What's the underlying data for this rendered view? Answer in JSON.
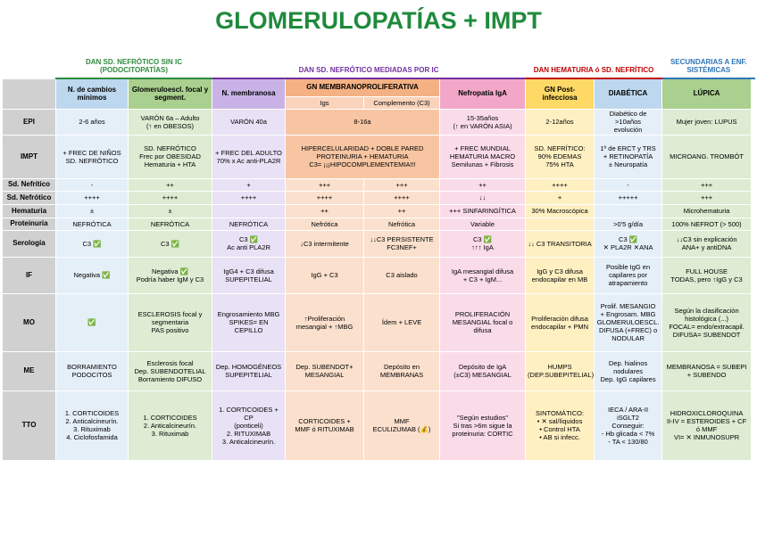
{
  "title": "GLOMERULOPATÍAS + IMPT",
  "groups": [
    {
      "label": "DAN SD. NEFRÓTICO SIN IC (PODOCITOPATÍAS)",
      "color": "#2e8b3e"
    },
    {
      "label": "DAN SD. NEFRÓTICO MEDIADAS POR IC",
      "color": "#7030a0"
    },
    {
      "label": "DAN HEMATURIA ó SD. NEFRÍTICO",
      "color": "#c00000"
    },
    {
      "label": "SECUNDARIAS A ENF. SISTÉMICAS",
      "color": "#2e74b5"
    }
  ],
  "columns": [
    {
      "label": "N. de cambios mínimos",
      "color": "#bdd7ee"
    },
    {
      "label": "Glomeruloescl. focal y segment.",
      "color": "#a9d08e"
    },
    {
      "label": "N. membranosa",
      "color": "#c9b3e6"
    },
    {
      "label": "GN MEMBRANOPROLIFERATIVA",
      "color": "#f4b183",
      "sub": [
        "Igs",
        "Complemento (C3)"
      ]
    },
    {
      "label": "Nefropatía IgA",
      "color": "#f2a7c8"
    },
    {
      "label": "GN Post-infecciosa",
      "color": "#ffd966"
    },
    {
      "label": "DIABÉTICA",
      "color": "#bdd7ee"
    },
    {
      "label": "LÚPICA",
      "color": "#a9d08e"
    }
  ],
  "rows": [
    {
      "label": "EPI",
      "cells": [
        "2-6 años",
        "VARÓN 6a – Adulto\n(↑ en OBESOS)",
        "VARÓN 40a",
        "8-16a",
        "15-35años\n(↑ en VARÓN ASIA)",
        "2-12años",
        "Diabético de\n>10años\nevolución",
        "Mujer joven: LUPUS"
      ]
    },
    {
      "label": "IMPT",
      "cells": [
        "+ FREC DE NIÑOS\nSD. NEFRÓTICO",
        "SD. NEFRÓTICO\nFrec por OBESIDAD\nHematuria + HTA",
        "+ FREC DEL ADULTO\n70% x Ac anti-PLA2R",
        "HIPERCELULARIDAD + DOBLE PARED\nPROTEINURIA + HEMATURIA\nC3= ¡¡¡HIPOCOMPLEMENTEMIA!!!",
        "+ FREC MUNDIAL\nHEMATURIA MACRO\nSemilunas + Fibrosis",
        "SD. NEFRÍTICO:\n90% EDEMAS\n75% HTA",
        "1º de ERCT y TRS\n+ RETINOPATÍA\n± Neuropatía",
        "MICROANG. TROMBÓT"
      ]
    },
    {
      "label": "Sd. Nefrítico",
      "cells": [
        "-",
        "++",
        "+",
        "+++",
        "+++",
        "++",
        "++++",
        "-",
        "+++"
      ]
    },
    {
      "label": "Sd. Nefrótico",
      "cells": [
        "++++",
        "++++",
        "++++",
        "++++",
        "++++",
        "↓↓",
        "+",
        "+++++",
        "+++"
      ]
    },
    {
      "label": "Hematuria",
      "cells": [
        "±",
        "±",
        null,
        "++",
        "++",
        "+++ SINFARINGÍTICA",
        "30% Macroscópica",
        null,
        "Microhematuria"
      ]
    },
    {
      "label": "Proteinuria",
      "cells": [
        "NEFRÓTICA",
        "NEFRÓTICA",
        "NEFRÓTICA",
        "Nefrótica",
        "Nefrótica",
        "Variable",
        null,
        ">0'5 g/día",
        "100% NEFROT (> 500)"
      ]
    },
    {
      "label": "Serología",
      "cells": [
        "C3 ✅",
        "C3 ✅",
        "C3 ✅\nAc anti PLA2R",
        "↓C3 intermitente",
        "↓↓C3 PERSISTENTE\nFC3NEF+",
        "C3 ✅\n↑↑↑ IgA",
        "↓↓ C3 TRANSITORIA",
        "C3 ✅\n✕ PLA2R ✕ANA",
        "↓↓C3 sin explicación\nANA+ y antiDNA"
      ]
    },
    {
      "label": "IF",
      "cells": [
        "Negativa ✅",
        "Negativa ✅\nPodría haber IgM y C3",
        "IgG4 + C3 difusa\nSUPEPITELIAL",
        "IgG + C3",
        "C3 aislado",
        "IgA mesangial difusa\n+ C3 + IgM...",
        "IgG y C3 difusa\nendocapilar en MB",
        "Posible IgG en\ncapilares por\natrapamiento",
        "FULL HOUSE\nTODAS, pero ↑IgG y C3"
      ]
    },
    {
      "label": "MO",
      "cells": [
        "✅",
        "ESCLEROSIS focal y\nsegmentaria\nPAS positivo",
        "Engrosamiento MBG\nSPIKES= EN CEPILLO",
        "↑Proliferación\nmesangial + ↑MBG",
        "Ídem + LEVE",
        "PROLIFERACIÓN\nMESANGIAL focal o\ndifusa",
        "Proliferación difusa\nendocapilar + PMN",
        "Prolif. MESANGIO\n+ Engrosam. MBG\nGLOMERULOESCL.\nDIFUSA (+FREC) o\nNODULAR",
        "Según la clasificación\nhistológica (...)\nFOCAL= endo/extracapil.\nDIFUSA= SUBENDOT"
      ]
    },
    {
      "label": "ME",
      "cells": [
        "BORRAMIENTO\nPODOCITOS",
        "Esclerosis focal\nDep. SUBENDOTELIAL\nBorramiento DIFUSO",
        "Dep. HOMOGÉNEOS\nSUPEPITELIAL",
        "Dep. SUBENDOT+\nMESANGIAL",
        "Depósito en\nMEMBRANAS",
        "Depósito de IgA\n(±C3) MESANGIAL",
        "HUMPS\n(DEP.SUBEPITELIAL)",
        "Dep. hialinos\nnodulares\nDep. IgG capilares",
        "MEMBRANOSA = SUBEPI\n+ SUBENDO"
      ]
    },
    {
      "label": "TTO",
      "cells": [
        "1. CORTICOIDES\n2. Anticalcineurín.\n3. Rituximab\n4. Ciclofosfamida",
        "1. CORTICOIDES\n2. Anticalcineurín.\n3. Rituximab",
        "1. CORTICOIDES + CP\n(ponticeli)\n2. RITUXIMAB\n3. Anticalcineurín.",
        "CORTICOIDES +\nMMF ó RITUXIMAB",
        "MMF\nECULIZUMAB (💰)",
        "\"Según estudios\"\nSi tras >6m sigue la\nproteinuria: CORTIC",
        "SINTOMÁTICO:\n• ✕ sal/líquidos\n• Control HTA\n• AB si infecc.",
        "IECA / ARA-II\niSGLT2\nConseguir:\n- Hb glicada < 7%\n- TA < 130/80",
        "HIDROXICLOROQUINA\nII-IV = ESTEROIDES + CF\nó MMF\nVI= ✕ INMUNOSUPR"
      ]
    }
  ]
}
